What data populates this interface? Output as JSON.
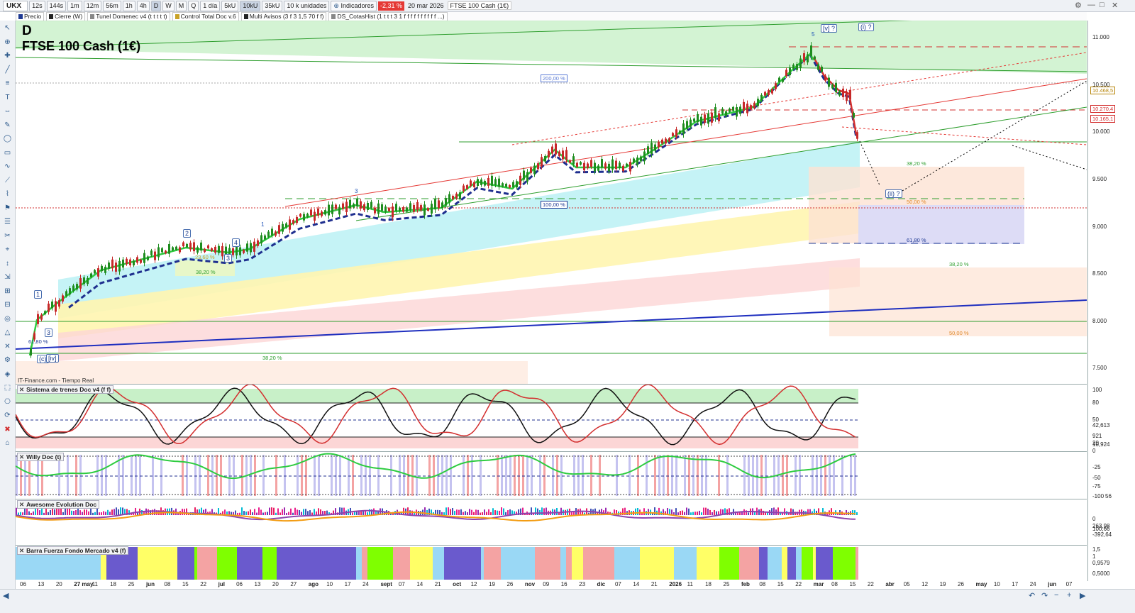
{
  "toolbar": {
    "symbol": "UKX",
    "periods": [
      "12s",
      "144s",
      "1m",
      "12m",
      "56m",
      "1h",
      "4h",
      "D",
      "W",
      "M",
      "Q"
    ],
    "active_period": "D",
    "range": "1 día",
    "units": [
      "5kU",
      "10kU",
      "35kU"
    ],
    "active_unit": "10kU",
    "units_dropdown": "10 k unidades",
    "indicators_label": "Indicadores",
    "change": "-2,31 %",
    "date": "20 mar 2026",
    "instrument": "FTSE 100 Cash (1€)"
  },
  "indicator_bar": [
    {
      "label": "Precio",
      "color": "#1f3a93"
    },
    {
      "label": "Cierre (W)",
      "color": "#222222"
    },
    {
      "label": "Tunel Domenec v4 (t t t t t)",
      "color": "#888888"
    },
    {
      "label": "Control Total Doc v.6",
      "color": "#c9a227"
    },
    {
      "label": "Multi Avisos (3 f 3 1,5 70 f f)",
      "color": "#222222"
    },
    {
      "label": "DS_CotasHist (1 t t t 3 1 f f f f f f f f f f ...)",
      "color": "#888888"
    }
  ],
  "chart": {
    "timeframe_letter": "D",
    "title": "FTSE 100 Cash (1€)",
    "vendor": "IT-Finance.com - Tiempo Real",
    "price_axis": [
      "11.000",
      "10.500",
      "10.000",
      "9.500",
      "9.000",
      "8.500",
      "8.000",
      "7.500"
    ],
    "price_tags": [
      {
        "text": "10.468,5",
        "color": "#b8860b"
      },
      {
        "text": "10.270,4",
        "color": "#d32f2f"
      },
      {
        "text": "10.165,1",
        "color": "#d32f2f"
      }
    ],
    "fib_labels": [
      {
        "text": "200,00 %",
        "color": "#5b7bd5"
      },
      {
        "text": "100,00 %",
        "color": "#1f3a93"
      },
      {
        "text": "38,20 %",
        "color": "#2e9e2e"
      },
      {
        "text": "50,00 %",
        "color": "#e08b2e"
      },
      {
        "text": "61,80 %",
        "color": "#1f3a93"
      },
      {
        "text": "38,20 %",
        "color": "#2e9e2e"
      },
      {
        "text": "50,00 %",
        "color": "#e08b2e"
      },
      {
        "text": "38,20 %",
        "color": "#2e9e2e"
      },
      {
        "text": "23,60 %",
        "color": "#c9a227"
      },
      {
        "text": "38,20 %",
        "color": "#2e9e2e"
      },
      {
        "text": "61,80 %",
        "color": "#1f3a93"
      }
    ],
    "wave_labels": [
      "[v] ?",
      "(i) ?",
      "(ii) ?",
      "5",
      "3",
      "1",
      "2",
      "4",
      "(c)",
      "[iv]",
      "3",
      "4",
      "1",
      "3"
    ]
  },
  "panels": [
    {
      "title": "Sistema de trenes Doc v4 (f f)",
      "axis": [
        "100",
        "80",
        "50",
        "42,613",
        "921",
        "20",
        "10,924",
        "0"
      ]
    },
    {
      "title": "Willy Doc (t)",
      "axis": [
        "-25",
        "-50",
        "-75",
        "-100",
        "56"
      ]
    },
    {
      "title": "Awesome Evolution Doc",
      "axis": [
        "0",
        "263,98",
        "100,66",
        "-392,64"
      ]
    },
    {
      "title": "Barra Fuerza Fondo Mercado v4 (f)",
      "axis": [
        "1,5",
        "1",
        "0,9579",
        "0,5000"
      ]
    }
  ],
  "dates": [
    {
      "t": "06",
      "m": false
    },
    {
      "t": "13",
      "m": false
    },
    {
      "t": "20",
      "m": false
    },
    {
      "t": "27 may",
      "m": true
    },
    {
      "t": "11",
      "m": false
    },
    {
      "t": "18",
      "m": false
    },
    {
      "t": "25",
      "m": false
    },
    {
      "t": "jun",
      "m": true
    },
    {
      "t": "08",
      "m": false
    },
    {
      "t": "15",
      "m": false
    },
    {
      "t": "22",
      "m": false
    },
    {
      "t": "jul",
      "m": true
    },
    {
      "t": "06",
      "m": false
    },
    {
      "t": "13",
      "m": false
    },
    {
      "t": "20",
      "m": false
    },
    {
      "t": "27",
      "m": false
    },
    {
      "t": "ago",
      "m": true
    },
    {
      "t": "10",
      "m": false
    },
    {
      "t": "17",
      "m": false
    },
    {
      "t": "24",
      "m": false
    },
    {
      "t": "sept",
      "m": true
    },
    {
      "t": "07",
      "m": false
    },
    {
      "t": "14",
      "m": false
    },
    {
      "t": "21",
      "m": false
    },
    {
      "t": "oct",
      "m": true
    },
    {
      "t": "12",
      "m": false
    },
    {
      "t": "19",
      "m": false
    },
    {
      "t": "26",
      "m": false
    },
    {
      "t": "nov",
      "m": true
    },
    {
      "t": "09",
      "m": false
    },
    {
      "t": "16",
      "m": false
    },
    {
      "t": "23",
      "m": false
    },
    {
      "t": "dic",
      "m": true
    },
    {
      "t": "07",
      "m": false
    },
    {
      "t": "14",
      "m": false
    },
    {
      "t": "21",
      "m": false
    },
    {
      "t": "2026",
      "m": true
    },
    {
      "t": "11",
      "m": false
    },
    {
      "t": "18",
      "m": false
    },
    {
      "t": "25",
      "m": false
    },
    {
      "t": "feb",
      "m": true
    },
    {
      "t": "08",
      "m": false
    },
    {
      "t": "15",
      "m": false
    },
    {
      "t": "22",
      "m": false
    },
    {
      "t": "mar",
      "m": true
    },
    {
      "t": "08",
      "m": false
    },
    {
      "t": "15",
      "m": false
    },
    {
      "t": "22",
      "m": false
    },
    {
      "t": "abr",
      "m": true
    },
    {
      "t": "05",
      "m": false
    },
    {
      "t": "12",
      "m": false
    },
    {
      "t": "19",
      "m": false
    },
    {
      "t": "26",
      "m": false
    },
    {
      "t": "may",
      "m": true
    },
    {
      "t": "10",
      "m": false
    },
    {
      "t": "17",
      "m": false
    },
    {
      "t": "24",
      "m": false
    },
    {
      "t": "jun",
      "m": true
    },
    {
      "t": "07",
      "m": false
    }
  ],
  "colors": {
    "up": "#1e8c1e",
    "down": "#c62828",
    "ema_fast": "#2ecc40",
    "ema_slow": "#1f2f8f",
    "accent": "#1f3a93"
  },
  "icons": [
    "cursor-icon",
    "zoom-icon",
    "crosshair-icon",
    "trendline-icon",
    "fibonacci-icon",
    "text-icon",
    "measure-icon",
    "delete-icon"
  ]
}
